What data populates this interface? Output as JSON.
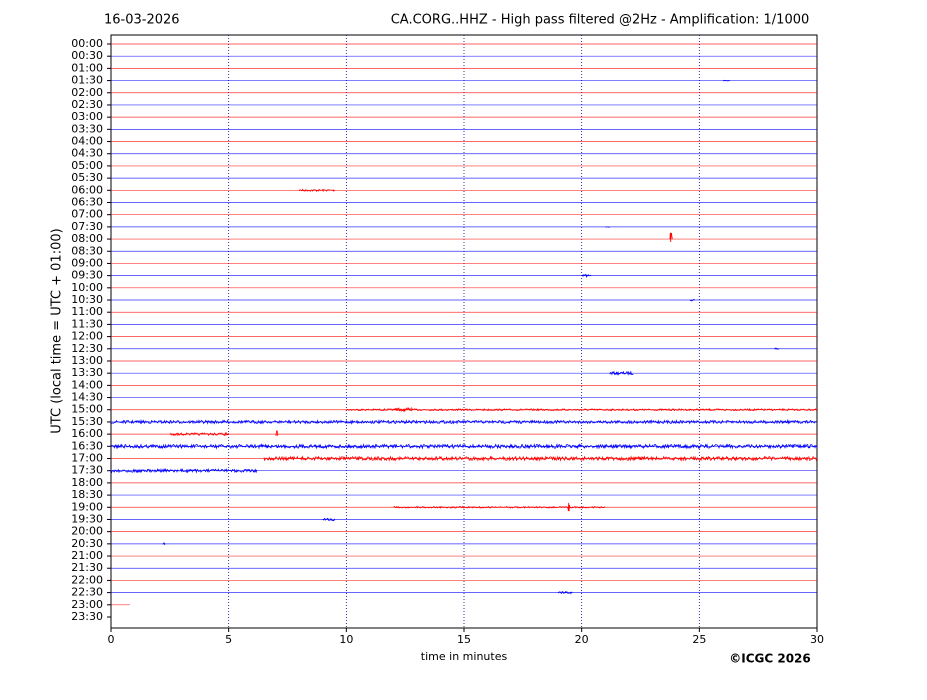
{
  "chart_data": {
    "type": "helicorder",
    "date": "16-03-2026",
    "title": "CA.CORG..HHZ - High pass filtered @2Hz - Amplification: 1/1000",
    "ylabel": "UTC (local time = UTC + 01:00)",
    "xlabel": "time in minutes",
    "credit": "©ICGC 2026",
    "xlim": [
      0,
      30
    ],
    "xticks": [
      0,
      5,
      10,
      15,
      20,
      25,
      30
    ],
    "grid": true,
    "colors": [
      "#ff0000",
      "#0000ff"
    ],
    "categories": [
      "00:00",
      "00:30",
      "01:00",
      "01:30",
      "02:00",
      "02:30",
      "03:00",
      "03:30",
      "04:00",
      "04:30",
      "05:00",
      "05:30",
      "06:00",
      "06:30",
      "07:00",
      "07:30",
      "08:00",
      "08:30",
      "09:00",
      "09:30",
      "10:00",
      "10:30",
      "11:00",
      "11:30",
      "12:00",
      "12:30",
      "13:00",
      "13:30",
      "14:00",
      "14:30",
      "15:00",
      "15:30",
      "16:00",
      "16:30",
      "17:00",
      "17:30",
      "18:00",
      "18:30",
      "19:00",
      "19:30",
      "20:00",
      "20:30",
      "21:00",
      "21:30",
      "22:00",
      "22:30",
      "23:00",
      "23:30"
    ],
    "data_end": {
      "row": "23:00",
      "minute": 0.8
    },
    "events": [
      {
        "row": "01:30",
        "x": [
          26,
          26.3
        ],
        "amplitude": 0.05
      },
      {
        "row": "06:00",
        "x": [
          8,
          9.5
        ],
        "amplitude": 0.08
      },
      {
        "row": "07:30",
        "x": [
          21,
          21.2
        ],
        "amplitude": 0.05
      },
      {
        "row": "08:00",
        "x": [
          23.75,
          23.85
        ],
        "amplitude": 1.5
      },
      {
        "row": "09:30",
        "x": [
          20,
          20.4
        ],
        "amplitude": 0.1
      },
      {
        "row": "10:30",
        "x": [
          24.6,
          24.8
        ],
        "amplitude": 0.08
      },
      {
        "row": "12:30",
        "x": [
          28.2,
          28.4
        ],
        "amplitude": 0.08
      },
      {
        "row": "13:30",
        "x": [
          21.2,
          22.2
        ],
        "amplitude": 0.12
      },
      {
        "row": "15:00",
        "x": [
          10,
          30
        ],
        "amplitude": 0.07
      },
      {
        "row": "15:00",
        "x": [
          12,
          12.8
        ],
        "amplitude": 0.15
      },
      {
        "row": "15:30",
        "x": [
          0,
          30
        ],
        "amplitude": 0.12
      },
      {
        "row": "16:00",
        "x": [
          2.5,
          5
        ],
        "amplitude": 0.1
      },
      {
        "row": "16:00",
        "x": [
          7,
          7.1
        ],
        "amplitude": 0.3
      },
      {
        "row": "16:30",
        "x": [
          0,
          30
        ],
        "amplitude": 0.15
      },
      {
        "row": "17:00",
        "x": [
          6.5,
          30
        ],
        "amplitude": 0.15
      },
      {
        "row": "17:30",
        "x": [
          0,
          6.2
        ],
        "amplitude": 0.12
      },
      {
        "row": "19:00",
        "x": [
          12,
          21
        ],
        "amplitude": 0.06
      },
      {
        "row": "19:00",
        "x": [
          19.4,
          19.5
        ],
        "amplitude": 0.5
      },
      {
        "row": "19:30",
        "x": [
          9,
          9.5
        ],
        "amplitude": 0.1
      },
      {
        "row": "20:30",
        "x": [
          2.2,
          2.3
        ],
        "amplitude": 0.08
      },
      {
        "row": "22:30",
        "x": [
          19,
          19.6
        ],
        "amplitude": 0.08
      }
    ]
  }
}
